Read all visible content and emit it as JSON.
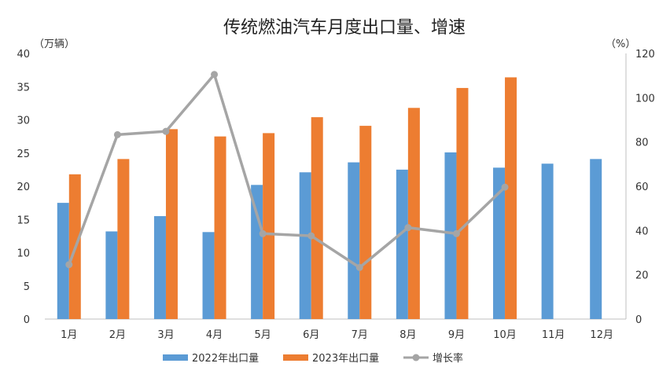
{
  "chart_data": {
    "type": "bar",
    "title": "传统燃油汽车月度出口量、增速",
    "categories": [
      "1月",
      "2月",
      "3月",
      "4月",
      "5月",
      "6月",
      "7月",
      "8月",
      "9月",
      "10月",
      "11月",
      "12月"
    ],
    "series": [
      {
        "name": "2022年出口量",
        "kind": "bar",
        "axis": "left",
        "color": "#5B9BD5",
        "values": [
          17.5,
          13.2,
          15.5,
          13.1,
          20.2,
          22.1,
          23.6,
          22.5,
          25.1,
          22.8,
          23.4,
          24.1
        ]
      },
      {
        "name": "2023年出口量",
        "kind": "bar",
        "axis": "left",
        "color": "#ED7D31",
        "values": [
          21.8,
          24.1,
          28.6,
          27.5,
          28.0,
          30.4,
          29.1,
          31.8,
          34.8,
          36.4,
          null,
          null
        ]
      },
      {
        "name": "增长率",
        "kind": "line",
        "axis": "right",
        "color": "#A5A5A5",
        "values": [
          24.6,
          83.3,
          84.8,
          110.5,
          38.6,
          37.6,
          23.3,
          41.3,
          38.6,
          59.6,
          null,
          null
        ]
      }
    ],
    "ylabel_left": "（万辆）",
    "ylabel_right": "（%）",
    "ylim_left": [
      0,
      40
    ],
    "yticks_left": [
      "0",
      "5",
      "10",
      "15",
      "20",
      "25",
      "30",
      "35",
      "40"
    ],
    "ylim_right": [
      0,
      120
    ],
    "yticks_right": [
      "0",
      "20",
      "40",
      "60",
      "80",
      "100",
      "120"
    ],
    "grid": false,
    "legend_position": "bottom"
  }
}
